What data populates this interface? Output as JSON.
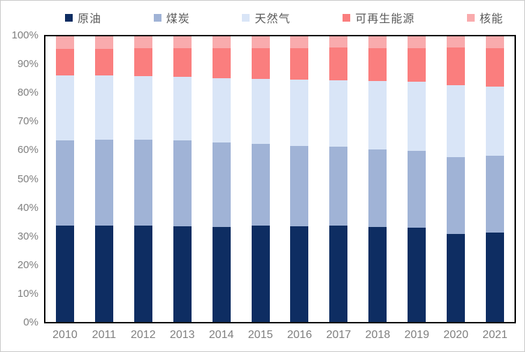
{
  "chart_data": {
    "type": "bar",
    "stacked": true,
    "units": "percent",
    "title": "",
    "xlabel": "",
    "ylabel": "",
    "ylim": [
      0,
      100
    ],
    "grid": false,
    "legend_position": "top",
    "categories": [
      "2010",
      "2011",
      "2012",
      "2013",
      "2014",
      "2015",
      "2016",
      "2017",
      "2018",
      "2019",
      "2020",
      "2021"
    ],
    "series": [
      {
        "name": "原油",
        "color": "#0E2D62",
        "values": [
          33.7,
          33.7,
          33.8,
          33.5,
          33.3,
          33.7,
          33.5,
          33.7,
          33.3,
          33.0,
          30.8,
          31.2
        ]
      },
      {
        "name": "煤炭",
        "color": "#A0B3D6",
        "values": [
          29.9,
          30.1,
          29.9,
          30.0,
          29.6,
          28.7,
          28.2,
          27.6,
          27.1,
          26.8,
          26.9,
          27.0
        ]
      },
      {
        "name": "天然气",
        "color": "#D9E5F7",
        "values": [
          22.8,
          22.4,
          22.4,
          22.3,
          22.5,
          22.6,
          23.2,
          23.3,
          24.0,
          24.3,
          25.1,
          24.2
        ]
      },
      {
        "name": "可再生能源",
        "color": "#FA7E7E",
        "values": [
          9.1,
          9.3,
          9.7,
          10.0,
          10.4,
          10.8,
          10.9,
          11.4,
          11.4,
          11.7,
          13.2,
          13.4
        ]
      },
      {
        "name": "核能",
        "color": "#F9ABAD",
        "values": [
          4.5,
          4.5,
          4.2,
          4.2,
          4.2,
          4.2,
          4.2,
          4.0,
          4.2,
          4.2,
          4.0,
          4.2
        ]
      }
    ],
    "y_ticks": [
      "100%",
      "90%",
      "80%",
      "70%",
      "60%",
      "50%",
      "40%",
      "30%",
      "20%",
      "10%",
      "0%"
    ],
    "colors": {
      "axis_text": "#7F7F7F",
      "legend_text": "#595959",
      "plot_border": "#000000",
      "background": "#FFFFFF"
    }
  }
}
